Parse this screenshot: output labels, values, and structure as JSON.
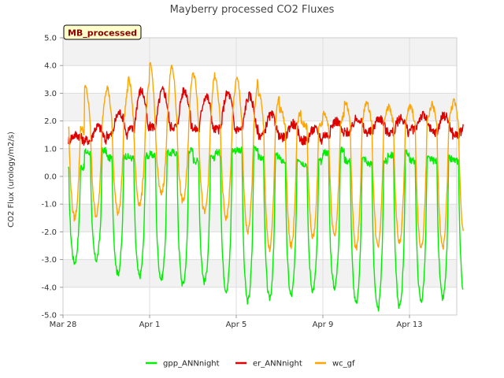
{
  "chart_data": {
    "type": "line",
    "title": "Mayberry processed CO2 Fluxes",
    "badge": "MB_processed",
    "xlabel": "",
    "ylabel": "CO2 Flux (urology/m2/s)",
    "xlim": [
      "Mar 28",
      "Apr 15 18:00"
    ],
    "ylim": [
      -5.0,
      5.0
    ],
    "x_ticks": [
      "Mar 28",
      "Apr 1",
      "Apr 5",
      "Apr 9",
      "Apr 13"
    ],
    "y_ticks": [
      "5.0",
      "4.0",
      "3.0",
      "2.0",
      "1.0",
      "0.0",
      "-1.0",
      "-2.0",
      "-3.0",
      "-4.0",
      "-5.0"
    ],
    "grid": true,
    "legend_position": "bottom",
    "x_start": "Mar 28 06:00",
    "x_end": "Apr 15 12:00",
    "series": [
      {
        "name": "gpp_ANNnight",
        "color": "#00ee00",
        "day_midday_values": [
          -3.1,
          -3.0,
          -3.5,
          -3.6,
          -3.7,
          -3.9,
          -3.8,
          -4.1,
          -4.5,
          -4.4,
          -4.3,
          -4.1,
          -4.0,
          -4.6,
          -4.8,
          -4.7,
          -4.5,
          -4.4,
          -4.3
        ],
        "night_values": [
          0.3,
          0.9,
          0.7,
          0.7,
          0.8,
          0.9,
          0.6,
          0.9,
          1.0,
          0.7,
          0.6,
          0.5,
          0.9,
          0.6,
          0.5,
          0.8,
          0.6,
          0.6,
          0.6
        ]
      },
      {
        "name": "er_ANNnight",
        "color": "#dd0000",
        "day_midday_values": [
          1.5,
          1.8,
          2.3,
          3.1,
          3.1,
          3.1,
          2.9,
          3.0,
          2.9,
          2.2,
          1.9,
          1.7,
          2.0,
          2.1,
          2.1,
          2.1,
          2.2,
          2.2,
          1.8
        ],
        "night_values": [
          1.3,
          1.3,
          1.5,
          1.7,
          1.8,
          1.8,
          1.7,
          1.7,
          1.7,
          1.5,
          1.4,
          1.3,
          1.5,
          1.6,
          1.6,
          1.6,
          1.7,
          1.6,
          1.5
        ]
      },
      {
        "name": "wc_gf",
        "color": "#ffa500",
        "day_midday_values": [
          -1.5,
          -1.4,
          -1.3,
          -1.0,
          -0.6,
          -0.9,
          -1.3,
          -1.5,
          -2.0,
          -2.6,
          -2.5,
          -2.2,
          -2.1,
          -2.6,
          -2.5,
          -2.4,
          -2.6,
          -2.6,
          -2.2
        ],
        "night_values": [
          1.6,
          3.2,
          3.2,
          3.5,
          4.0,
          3.9,
          3.7,
          3.5,
          3.5,
          3.0,
          2.4,
          1.9,
          2.3,
          2.7,
          2.6,
          2.5,
          2.5,
          2.6,
          2.7
        ]
      }
    ]
  }
}
